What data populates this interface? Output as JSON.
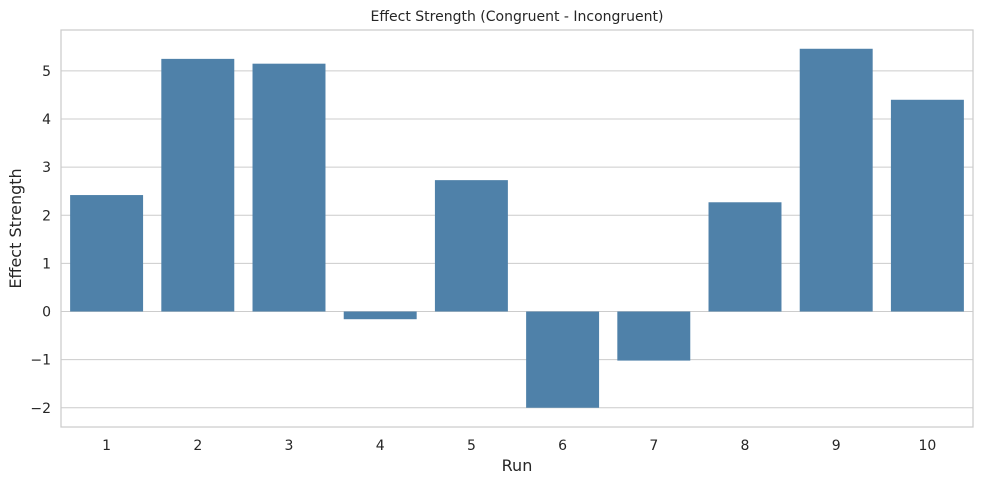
{
  "chart_data": {
    "type": "bar",
    "title": "Effect Strength (Congruent - Incongruent)",
    "xlabel": "Run",
    "ylabel": "Effect Strength",
    "categories": [
      "1",
      "2",
      "3",
      "4",
      "5",
      "6",
      "7",
      "8",
      "9",
      "10"
    ],
    "values": [
      2.42,
      5.25,
      5.15,
      -0.16,
      2.73,
      -2.0,
      -1.02,
      2.27,
      5.46,
      4.4
    ],
    "ylim": [
      -2.4,
      5.85
    ],
    "yticks": [
      -2,
      -1,
      0,
      1,
      2,
      3,
      4,
      5
    ],
    "ytick_labels": [
      "−2",
      "−1",
      "0",
      "1",
      "2",
      "3",
      "4",
      "5"
    ],
    "grid": true,
    "legend": "none",
    "colors": {
      "bar": "#4f81a9",
      "grid": "#cccccc",
      "frame": "#cccccc",
      "text": "#262626"
    }
  }
}
